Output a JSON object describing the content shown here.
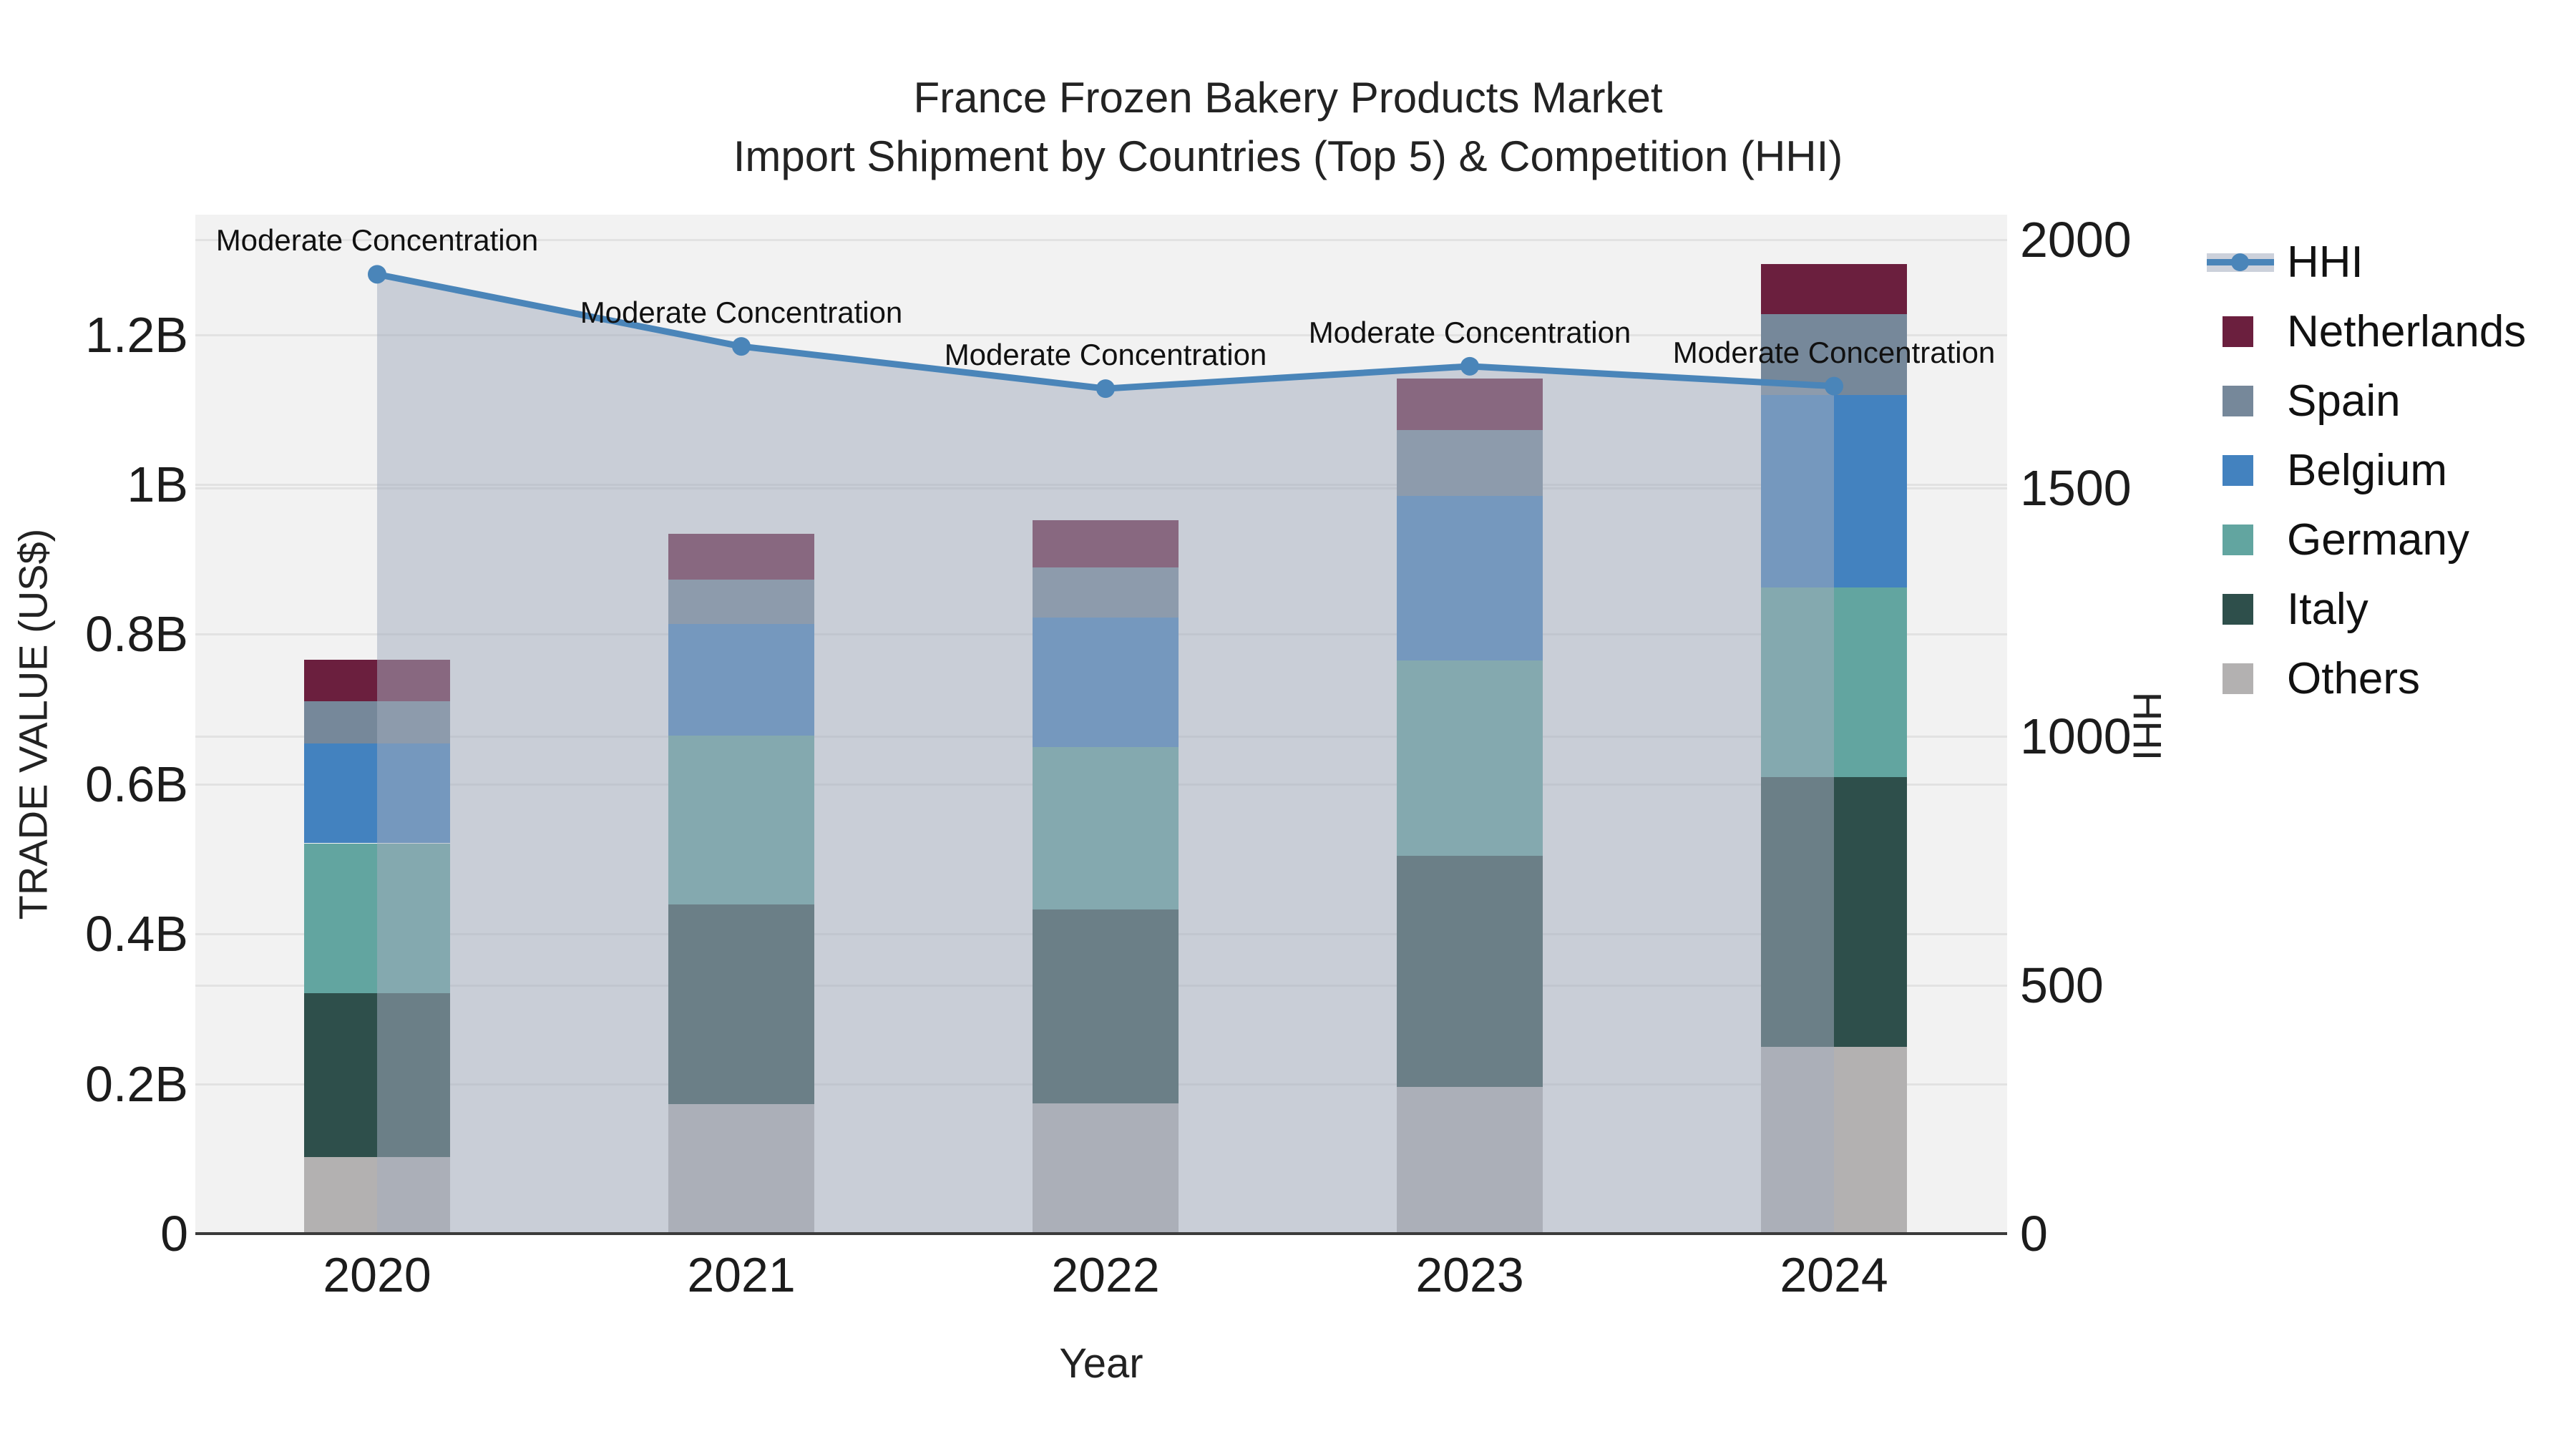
{
  "title": {
    "line1": "France Frozen Bakery Products Market",
    "line2": "Import Shipment by Countries (Top 5) & Competition (HHI)"
  },
  "axes": {
    "x_title": "Year",
    "y_left_title": "TRADE VALUE (US$)",
    "y_right_title": "HHI"
  },
  "legend": [
    {
      "label": "HHI",
      "type": "line",
      "color": "#4a85b9"
    },
    {
      "label": "Netherlands",
      "type": "square",
      "color": "#6b1f3e"
    },
    {
      "label": "Spain",
      "type": "square",
      "color": "#76889a"
    },
    {
      "label": "Belgium",
      "type": "square",
      "color": "#4382bf"
    },
    {
      "label": "Germany",
      "type": "square",
      "color": "#62a5a0"
    },
    {
      "label": "Italy",
      "type": "square",
      "color": "#2e4f4b"
    },
    {
      "label": "Others",
      "type": "square",
      "color": "#b3b1b1"
    }
  ],
  "chart_data": {
    "type": "combo",
    "bar_mode": "stacked",
    "title": "France Frozen Bakery Products Market — Import Shipment by Countries (Top 5) & Competition (HHI)",
    "xlabel": "Year",
    "ylabel_left": "TRADE VALUE (US$)",
    "ylabel_right": "HHI",
    "categories": [
      "2020",
      "2021",
      "2022",
      "2023",
      "2024"
    ],
    "bar_series": [
      {
        "name": "Others",
        "color": "#b3b1b1",
        "values_million_usd": [
          102,
          173,
          174,
          196,
          249
        ]
      },
      {
        "name": "Italy",
        "color": "#2e4f4b",
        "values_million_usd": [
          219,
          266,
          259,
          308,
          360
        ]
      },
      {
        "name": "Germany",
        "color": "#62a5a0",
        "values_million_usd": [
          200,
          226,
          216,
          261,
          253
        ]
      },
      {
        "name": "Belgium",
        "color": "#4382bf",
        "values_million_usd": [
          133,
          149,
          173,
          220,
          257
        ]
      },
      {
        "name": "Spain",
        "color": "#76889a",
        "values_million_usd": [
          57,
          59,
          67,
          88,
          108
        ]
      },
      {
        "name": "Netherlands",
        "color": "#6b1f3e",
        "values_million_usd": [
          55,
          61,
          63,
          68,
          67
        ]
      }
    ],
    "bar_totals_million_usd": [
      766,
      934,
      952,
      1141,
      1294
    ],
    "line_series": {
      "name": "HHI",
      "color": "#4a85b9",
      "area_fill": "rgba(163,172,190,0.52)",
      "values": [
        1930,
        1785,
        1700,
        1745,
        1705
      ],
      "point_annotations": [
        "Moderate Concentration",
        "Moderate Concentration",
        "Moderate Concentration",
        "Moderate Concentration",
        "Moderate Concentration"
      ]
    },
    "y_left_ticks": [
      {
        "label": "0",
        "value": 0
      },
      {
        "label": "0.2B",
        "value": 0.2
      },
      {
        "label": "0.4B",
        "value": 0.4
      },
      {
        "label": "0.6B",
        "value": 0.6
      },
      {
        "label": "0.8B",
        "value": 0.8
      },
      {
        "label": "1B",
        "value": 1.0
      },
      {
        "label": "1.2B",
        "value": 1.2
      }
    ],
    "y_right_ticks": [
      {
        "label": "0",
        "value": 0
      },
      {
        "label": "500",
        "value": 500
      },
      {
        "label": "1000",
        "value": 1000
      },
      {
        "label": "1500",
        "value": 1500
      },
      {
        "label": "2000",
        "value": 2000
      }
    ],
    "ylim_left_usd_b": [
      0,
      1.36
    ],
    "ylim_right": [
      0,
      2050
    ],
    "grid": true,
    "legend_position": "right",
    "style": {
      "plot_background": "#f2f2f2",
      "grid_color": "#e2e2e2",
      "axis_line_color": "#3b3b3b",
      "text_color": "#1c1c1c"
    }
  }
}
